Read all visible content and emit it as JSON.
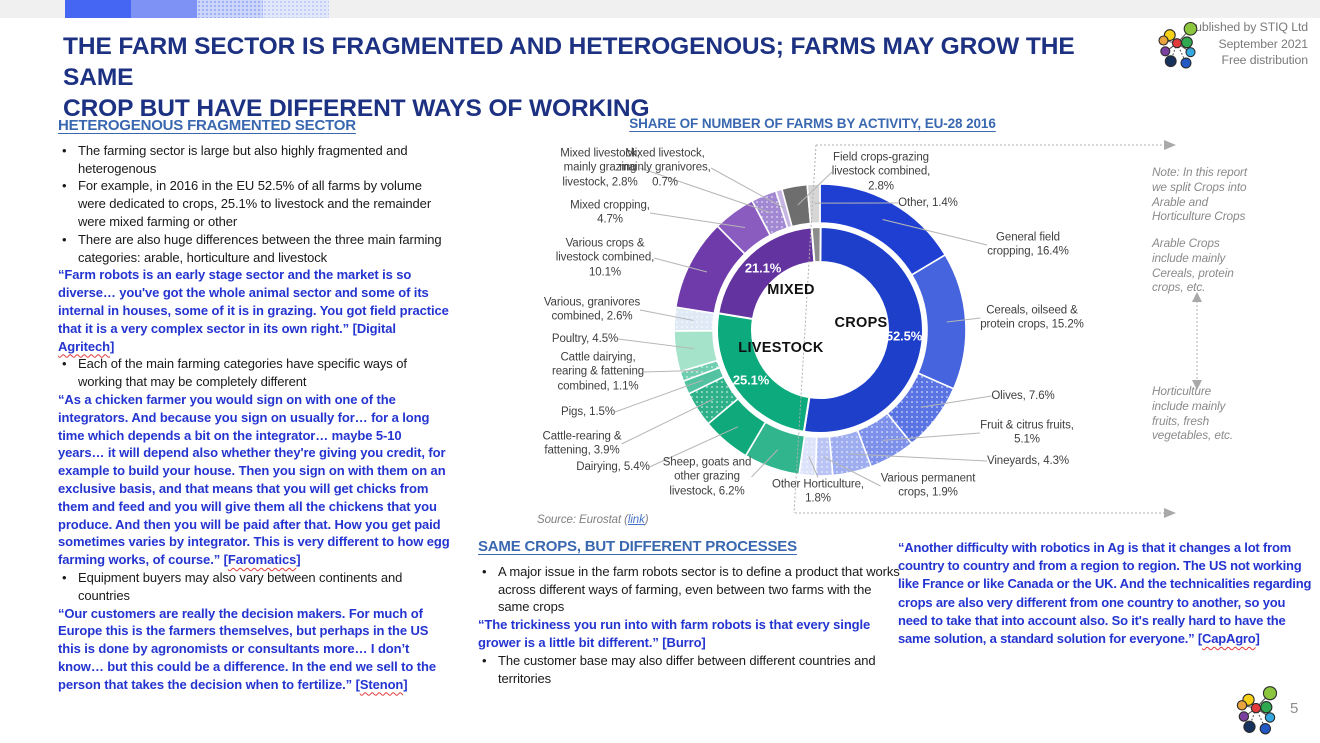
{
  "slide": {
    "title_line1": "THE FARM SECTOR IS FRAGMENTED AND HETEROGENOUS; FARMS MAY GROW THE SAME",
    "title_line2": "CROP BUT HAVE DIFFERENT WAYS OF WORKING",
    "published_line1": "Published by STIQ Ltd",
    "published_line2": "September 2021",
    "published_line3": "Free distribution",
    "page_number": "5"
  },
  "left": {
    "heading": "HETEROGENOUS FRAGMENTED SECTOR",
    "b1": "The farming sector is large but also highly fragmented and heterogenous",
    "b2": "For example, in 2016 in the EU 52.5% of all farms by volume were dedicated to crops, 25.1% to livestock and the remainder were mixed farming or other",
    "b3": "There are also huge differences between the three main farming categories: arable, horticulture and livestock",
    "q1_text": "“Farm robots is an early stage sector and the market is so diverse… you've got the whole animal sector and some of its internal in houses, some of it is in grazing. You got field practice that it is a very complex sector in its own right.”",
    "q1_attr_pre": " [Digital ",
    "q1_attr_word": "Agritech",
    "q1_attr_post": "]",
    "b4": "Each of the main farming categories have specific ways of working that may be completely different",
    "q2_text": "“As a chicken farmer you would sign on with one of the integrators. And because you sign on usually for… for a long time which depends a bit on the integrator… maybe 5-10 years… it will depend also whether they're giving you credit, for example to build your house. Then you sign on with them on an exclusive basis, and that means that you will get chicks from them and feed and you will give them all the chickens that you produce. And then you will be paid after that. How you get paid sometimes varies by integrator. This is very different to how egg farming works, of course.”",
    "q2_attr_pre": " [",
    "q2_attr_word": "Faromatics",
    "q2_attr_post": "]",
    "b5": "Equipment buyers may also vary between continents and countries",
    "q3_text": "“Our customers are really the decision makers. For much of Europe this is the farmers themselves, but perhaps in the US this is done by agronomists or consultants more… I don’t know… but this could be a difference. In the end we sell to the person that takes the decision when to fertilize.”",
    "q3_attr_pre": " [",
    "q3_attr_word": "Stenon",
    "q3_attr_post": "]"
  },
  "mid": {
    "heading": "SAME CROPS, BUT DIFFERENT PROCESSES",
    "b1": "A major issue in the farm robots sector is to define a product that works across different ways of farming, even between two farms with the same crops",
    "quote": "“The trickiness you run into with farm robots is that every single grower is a little bit different.” [Burro]",
    "b2": "The customer base may also differ between different countries and territories"
  },
  "right_quote": {
    "text": "“Another difficulty with robotics in Ag is that it changes a lot from country to country and from a region to region. The US not working like France or like Canada or the UK. And the technicalities regarding crops are also very different from one country to another, so you need to take that into account also. So it's really hard to have the same solution, a standard solution for everyone.”",
    "attr_pre": " [",
    "attr_word": "CapAgro",
    "attr_post": "]"
  },
  "notes": {
    "note1": "Note: In this report\nwe split Crops into\nArable and\nHorticulture Crops",
    "note2": "Arable Crops\ninclude mainly\nCereals, protein\ncrops, etc.",
    "note3": "Horticulture\ninclude mainly\nfruits, fresh\nvegetables, etc."
  },
  "chart_data": {
    "type": "nested-donut",
    "title": "SHARE OF NUMBER OF FARMS BY ACTIVITY, EU-28 2016",
    "source_prefix": "Source: Eurostat (",
    "source_link": "link",
    "source_suffix": ")",
    "legend_position": "labels-around-chart",
    "units": "% of number of farms, EU-28, 2016",
    "inner_ring": [
      {
        "name": "Crops",
        "value": 52.5,
        "color": "#1e3fca",
        "name_label": "CROPS",
        "pct_label": "52.5%"
      },
      {
        "name": "Livestock",
        "value": 25.1,
        "color": "#0caa7c",
        "name_label": "LIVESTOCK",
        "pct_label": "25.1%"
      },
      {
        "name": "Mixed",
        "value": 21.1,
        "color": "#63339f",
        "name_label": "MIXED",
        "pct_label": "21.1%"
      },
      {
        "name": "Other",
        "value": 1.4,
        "color": "#8c8c8c",
        "name_label": "",
        "pct_label": ""
      }
    ],
    "outer_ring": [
      {
        "name": "General field cropping",
        "value": 16.4,
        "color": "#1e3fd2",
        "dotted": false,
        "label": "General field\ncropping, 16.4%"
      },
      {
        "name": "Cereals, oilseed & protein crops",
        "value": 15.2,
        "color": "#4564dd",
        "dotted": false,
        "label": "Cereals, oilseed &\nprotein crops, 15.2%"
      },
      {
        "name": "Olives",
        "value": 7.6,
        "color": "#5a75e3",
        "dotted": true,
        "label": "Olives, 7.6%"
      },
      {
        "name": "Fruit & citrus fruits",
        "value": 5.1,
        "color": "#7e91ea",
        "dotted": true,
        "label": "Fruit & citrus fruits,\n5.1%"
      },
      {
        "name": "Vineyards",
        "value": 4.3,
        "color": "#9dadf0",
        "dotted": true,
        "label": "Vineyards, 4.3%"
      },
      {
        "name": "Various permanent crops",
        "value": 1.9,
        "color": "#b9c4f4",
        "dotted": true,
        "label": "Various permanent\ncrops, 1.9%"
      },
      {
        "name": "Other Horticulture",
        "value": 1.8,
        "color": "#dde3fa",
        "dotted": true,
        "label": "Other Horticulture,\n1.8%"
      },
      {
        "name": "Sheep, goats and other grazing livestock",
        "value": 6.2,
        "color": "#30b58c",
        "dotted": false,
        "label": "Sheep, goats and\nother grazing\nlivestock, 6.2%"
      },
      {
        "name": "Dairying",
        "value": 5.4,
        "color": "#0fa97b",
        "dotted": false,
        "label": "Dairying, 5.4%"
      },
      {
        "name": "Cattle-rearing & fattening",
        "value": 3.9,
        "color": "#2eb189",
        "dotted": true,
        "label": "Cattle-rearing &\nfattening, 3.9%"
      },
      {
        "name": "Pigs",
        "value": 1.5,
        "color": "#52c2a0",
        "dotted": false,
        "label": "Pigs, 1.5%"
      },
      {
        "name": "Cattle dairying, rearing & fattening combined",
        "value": 1.1,
        "color": "#6fcdb0",
        "dotted": true,
        "label": "Cattle dairying,\nrearing & fattening\ncombined, 1.1%"
      },
      {
        "name": "Poultry",
        "value": 4.5,
        "color": "#a5e3cb",
        "dotted": false,
        "label": "Poultry, 4.5%"
      },
      {
        "name": "Various, granivores combined",
        "value": 2.6,
        "color": "#dfeaf6",
        "dotted": true,
        "label": "Various, granivores\ncombined, 2.6%"
      },
      {
        "name": "Various crops & livestock combined",
        "value": 10.1,
        "color": "#6f3bab",
        "dotted": false,
        "label": "Various crops &\nlivestock combined,\n10.1%"
      },
      {
        "name": "Mixed cropping",
        "value": 4.7,
        "color": "#8a5cc0",
        "dotted": false,
        "label": "Mixed cropping,\n4.7%"
      },
      {
        "name": "Mixed livestock, mainly grazing livestock",
        "value": 2.8,
        "color": "#a287d2",
        "dotted": true,
        "label": "Mixed livestock,\nmainly grazing\nlivestock, 2.8%"
      },
      {
        "name": "Mixed livestock, mainly granivores",
        "value": 0.7,
        "color": "#c7b6e4",
        "dotted": false,
        "label": "Mixed livestock,\nmainly granivores,\n0.7%"
      },
      {
        "name": "Field crops-grazing livestock combined",
        "value": 2.8,
        "color": "#6e6e6e",
        "dotted": false,
        "label": "Field crops-grazing\nlivestock combined,\n2.8%"
      },
      {
        "name": "Other",
        "value": 1.4,
        "color": "#d6d6d6",
        "dotted": false,
        "label": "Other, 1.4%"
      }
    ]
  }
}
